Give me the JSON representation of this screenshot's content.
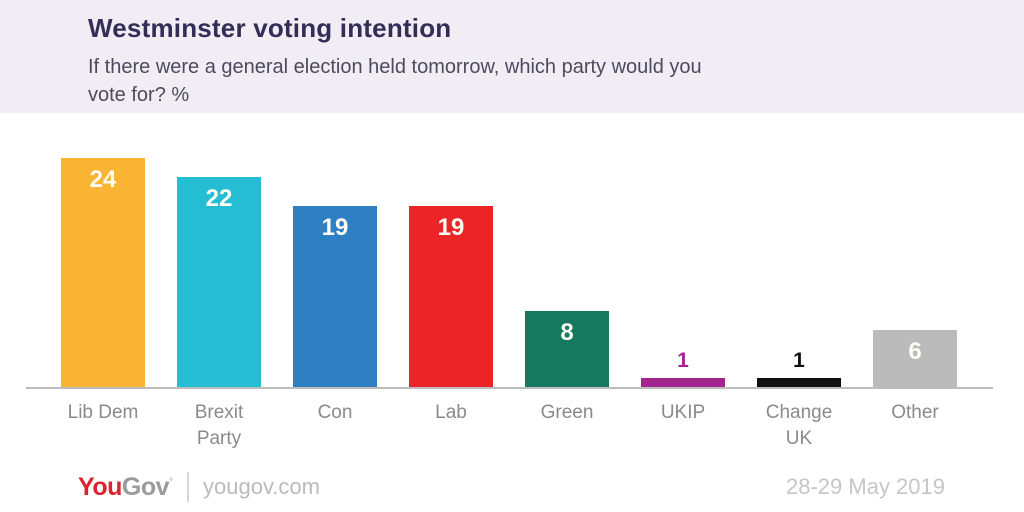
{
  "header": {
    "title": "Westminster voting intention",
    "subtitle_lines": [
      "If there were a general election held tomorrow, which party would you",
      "vote for? %"
    ]
  },
  "chart_data": {
    "type": "bar",
    "title": "Westminster voting intention",
    "subtitle": "If there were a general election held tomorrow, which party would you vote for? %",
    "categories": [
      "Lib Dem",
      "Brexit Party",
      "Con",
      "Lab",
      "Green",
      "UKIP",
      "Change UK",
      "Other"
    ],
    "values": [
      24,
      22,
      19,
      19,
      8,
      1,
      1,
      6
    ],
    "bar_colors": [
      "#F9B434",
      "#25BDD4",
      "#2E80C3",
      "#EB2428",
      "#14795F",
      "#A3268E",
      "#111111",
      "#BBBBBB"
    ],
    "xlabel": "",
    "ylabel": "",
    "ylim": [
      0,
      25
    ],
    "grid": false,
    "legend": false,
    "value_labels": "inside-top-white; values below 4 shown above bar in bar color",
    "label_inside_min": 4
  },
  "footer": {
    "logo_you": "You",
    "logo_gov": "Gov",
    "logo_tm": "°",
    "site": "yougov.com",
    "date_range": "28-29 May 2019"
  },
  "colors": {
    "header_bg": "#F0EEF4",
    "title_text": "#332D58",
    "subtitle_text": "#4D4A5E",
    "axis_line": "#BCBCBC",
    "category_text": "#8A8A8A",
    "value_inside_text": "#FEFCF4",
    "logo_red": "#D9232E",
    "logo_gray": "#9B9B9B",
    "footer_gray": "#BBBABC",
    "date_gray": "#C6C5C8"
  }
}
